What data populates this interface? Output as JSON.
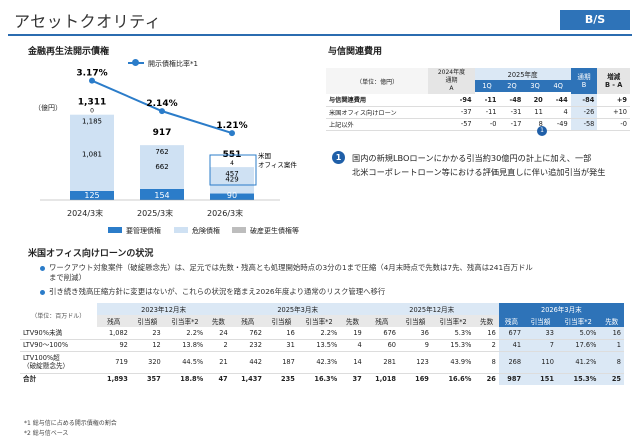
{
  "header": {
    "title": "アセットクオリティ",
    "tag": "B/S"
  },
  "npl": {
    "title": "金融再生法開示債権",
    "legend_line": "開示債権比率*1",
    "unit": "（億円）",
    "categories": [
      "2024/3末",
      "2025/3末",
      "2026/3末"
    ],
    "ratios": [
      "3.17%",
      "2.14%",
      "1.21%"
    ],
    "totals": [
      "1,311",
      "917",
      "551"
    ],
    "segments": {
      "special": [
        125,
        154,
        90
      ],
      "doubtful": [
        1081,
        662,
        429
      ],
      "doubtful_labels": [
        "1,081",
        "662",
        "429"
      ],
      "bankrupt_labels": [
        "0",
        "",
        "4"
      ],
      "top": [
        1185,
        762,
        457
      ],
      "top_labels": [
        "1,185",
        "762",
        "457"
      ]
    },
    "us_label": "米国\nオフィス案件",
    "legend": [
      "要管理債権",
      "危険債権",
      "破産更生債権等"
    ]
  },
  "credit_cost": {
    "title": "与信関連費用",
    "unit": "（単位：億円）",
    "col_a": "2024年度\n通期\nA",
    "fy_label": "2025年度",
    "quarters": [
      "1Q",
      "2Q",
      "3Q",
      "4Q"
    ],
    "col_b": "通期\nB",
    "col_diff": "増減\nB - A",
    "rows": [
      {
        "label": "与信関連費用",
        "a": "-94",
        "q": [
          "-11",
          "-48",
          "20",
          "-44"
        ],
        "b": "-84",
        "d": "+9"
      },
      {
        "label": "米国オフィス向けローン",
        "a": "-37",
        "q": [
          "-11",
          "-31",
          "11",
          "4"
        ],
        "b": "-26",
        "d": "+10"
      },
      {
        "label": "上記以外",
        "a": "-57",
        "q": [
          "-0",
          "-17",
          "8",
          "-49"
        ],
        "b": "-58",
        "d": "-0"
      }
    ],
    "marker": "1",
    "note_line1": "国内の新規LBOローンにかかる引当約30億円の計上に加え、一部",
    "note_line2": "北米コーポレートローン等における評価見直しに伴い追加引当が発生"
  },
  "us_office": {
    "title": "米国オフィス向けローンの状況",
    "bullet1_line1": "ワークアウト対象案件（破綻懸念先）は、足元では先数・残高とも処理開始時点の3分の1まで圧縮（4月末時点で先数は7先、残高は241百万ドル",
    "bullet1_line2": "まで削減）",
    "bullet2": "引き続き残高圧縮方針に変更はないが、これらの状況を踏まえ2026年度より通常のリスク管理へ移行",
    "unit": "（単位：百万ドル）",
    "periods": [
      "2023年12月末",
      "2025年3月末",
      "2025年12月末",
      "2026年3月末"
    ],
    "cols": [
      "残高",
      "引当額",
      "引当率*2",
      "先数"
    ],
    "rows": [
      {
        "label": "LTV90%未満",
        "v": [
          [
            "1,082",
            "23",
            "2.2%",
            "24"
          ],
          [
            "762",
            "16",
            "2.2%",
            "19"
          ],
          [
            "676",
            "36",
            "5.3%",
            "16"
          ],
          [
            "677",
            "33",
            "5.0%",
            "16"
          ]
        ]
      },
      {
        "label": "LTV90〜100%",
        "v": [
          [
            "92",
            "12",
            "13.8%",
            "2"
          ],
          [
            "232",
            "31",
            "13.5%",
            "4"
          ],
          [
            "60",
            "9",
            "15.3%",
            "2"
          ],
          [
            "41",
            "7",
            "17.6%",
            "1"
          ]
        ]
      },
      {
        "label": "LTV100%超\n（破綻懸念先）",
        "v": [
          [
            "719",
            "320",
            "44.5%",
            "21"
          ],
          [
            "442",
            "187",
            "42.3%",
            "14"
          ],
          [
            "281",
            "123",
            "43.9%",
            "8"
          ],
          [
            "268",
            "110",
            "41.2%",
            "8"
          ]
        ]
      },
      {
        "label": "合計",
        "v": [
          [
            "1,893",
            "357",
            "18.8%",
            "47"
          ],
          [
            "1,437",
            "235",
            "16.3%",
            "37"
          ],
          [
            "1,018",
            "169",
            "16.6%",
            "26"
          ],
          [
            "987",
            "151",
            "15.3%",
            "25"
          ]
        ]
      }
    ],
    "footnote1": "*1 総与信に占める開示債権の割合",
    "footnote2": "*2 総与信ベース"
  },
  "colors": {
    "accent": "#2e73b8",
    "special": "#2b7cc9",
    "doubtful": "#cfe1f3",
    "highlight": "#dbe8f5"
  }
}
